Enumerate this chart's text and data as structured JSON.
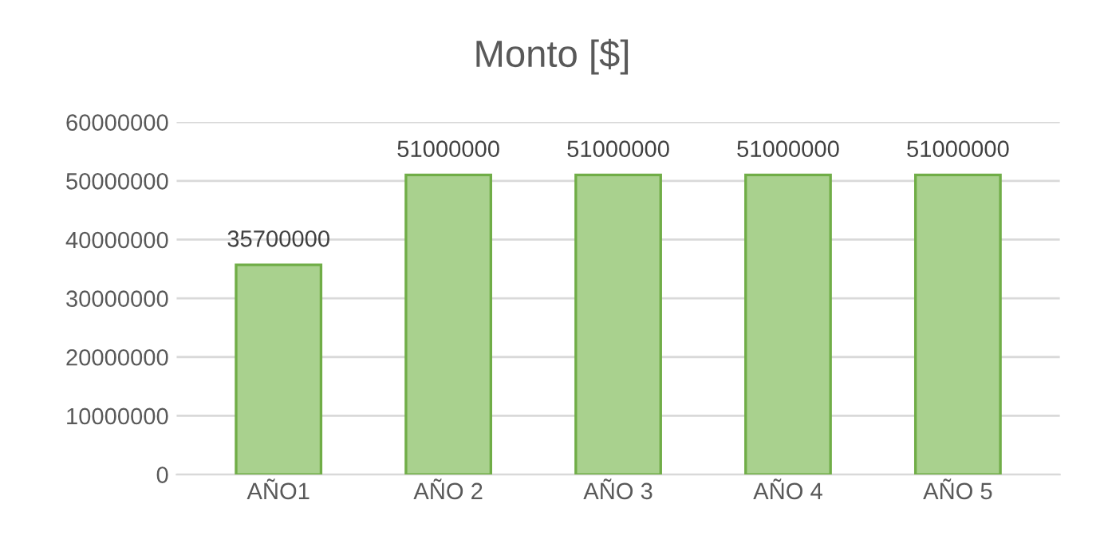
{
  "chart_data": {
    "type": "bar",
    "title": "Monto [$]",
    "categories": [
      "AÑO1",
      "AÑO 2",
      "AÑO 3",
      "AÑO 4",
      "AÑO 5"
    ],
    "values": [
      35700000,
      51000000,
      51000000,
      51000000,
      51000000
    ],
    "color": "#a9d18e",
    "ylim": [
      0,
      60000000
    ],
    "yticks": [
      0,
      10000000,
      20000000,
      30000000,
      40000000,
      50000000,
      60000000
    ],
    "grid": "y",
    "data_labels": true,
    "legend": false
  }
}
